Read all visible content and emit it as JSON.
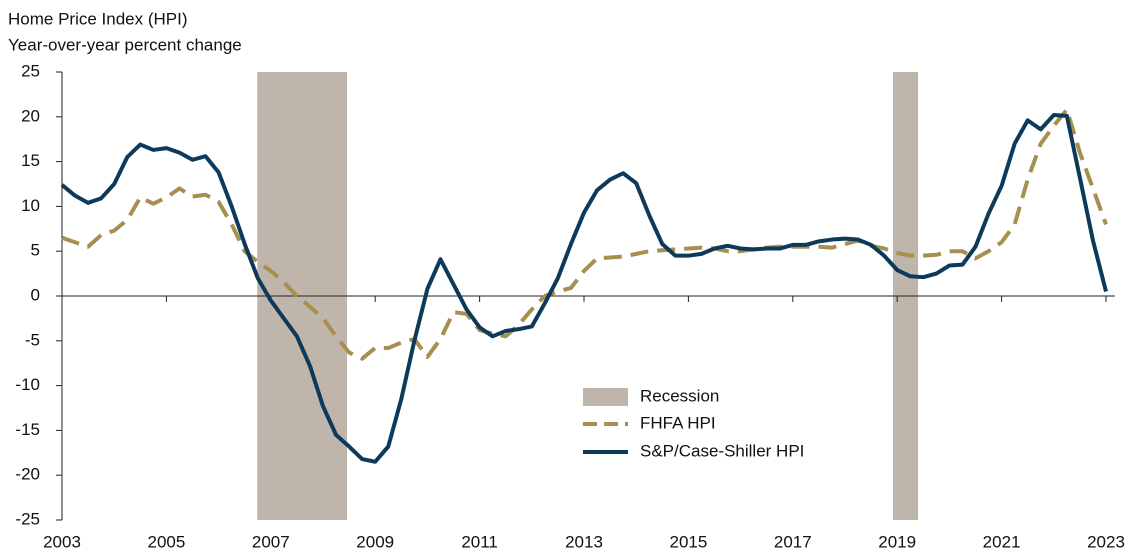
{
  "chart_data": {
    "type": "line",
    "title": "Home Price Index (HPI)",
    "subtitle": "Year-over-year percent change",
    "x": [
      2003,
      2003.25,
      2003.5,
      2003.75,
      2004,
      2004.25,
      2004.5,
      2004.75,
      2005,
      2005.25,
      2005.5,
      2005.75,
      2006,
      2006.25,
      2006.5,
      2006.75,
      2007,
      2007.25,
      2007.5,
      2007.75,
      2008,
      2008.25,
      2008.5,
      2008.75,
      2009,
      2009.25,
      2009.5,
      2009.75,
      2010,
      2010.25,
      2010.5,
      2010.75,
      2011,
      2011.25,
      2011.5,
      2011.75,
      2012,
      2012.25,
      2012.5,
      2012.75,
      2013,
      2013.25,
      2013.5,
      2013.75,
      2014,
      2014.25,
      2014.5,
      2014.75,
      2015,
      2015.25,
      2015.5,
      2015.75,
      2016,
      2016.25,
      2016.5,
      2016.75,
      2017,
      2017.25,
      2017.5,
      2017.75,
      2018,
      2018.25,
      2018.5,
      2018.75,
      2019,
      2019.25,
      2019.5,
      2019.75,
      2020,
      2020.25,
      2020.5,
      2020.75,
      2021,
      2021.25,
      2021.5,
      2021.75,
      2022,
      2022.25,
      2022.5,
      2022.75,
      2023
    ],
    "series": [
      {
        "name": "FHFA HPI",
        "color": "#a68f4f",
        "dashed": true,
        "values": [
          6.5,
          6.0,
          5.5,
          6.8,
          7.3,
          8.5,
          11.0,
          10.3,
          11.0,
          12.0,
          11.1,
          11.3,
          10.5,
          8.0,
          5.0,
          3.8,
          2.8,
          1.5,
          0,
          -1.2,
          -2.5,
          -4.5,
          -6.3,
          -7.0,
          -5.8,
          -5.8,
          -5.2,
          -4.8,
          -6.8,
          -4.8,
          -1.8,
          -2.0,
          -3.8,
          -4.2,
          -4.5,
          -3.2,
          -1.5,
          0.0,
          0.5,
          0.9,
          2.8,
          4.2,
          4.3,
          4.4,
          4.7,
          5.0,
          5.1,
          5.2,
          5.3,
          5.4,
          5.3,
          5.0,
          5.0,
          5.2,
          5.4,
          5.5,
          5.5,
          5.5,
          5.5,
          5.4,
          5.8,
          6.2,
          5.6,
          5.3,
          4.8,
          4.5,
          4.5,
          4.6,
          5.0,
          5.0,
          4.2,
          5.0,
          6.0,
          8.0,
          13.0,
          17.0,
          19.0,
          20.8,
          16.0,
          12.0,
          8.0
        ]
      },
      {
        "name": "S&P/Case-Shiller HPI",
        "color": "#0d3a5a",
        "dashed": false,
        "values": [
          12.4,
          11.2,
          10.4,
          10.9,
          12.5,
          15.5,
          16.9,
          16.3,
          16.5,
          16.0,
          15.2,
          15.6,
          13.8,
          10.0,
          5.8,
          2.0,
          -0.5,
          -2.5,
          -4.5,
          -7.8,
          -12.3,
          -15.5,
          -16.8,
          -18.2,
          -18.5,
          -16.8,
          -11.5,
          -5.0,
          0.8,
          4.1,
          1.3,
          -1.5,
          -3.5,
          -4.5,
          -3.9,
          -3.7,
          -3.4,
          -0.8,
          2.0,
          5.8,
          9.3,
          11.8,
          13.0,
          13.7,
          12.6,
          9.0,
          5.8,
          4.5,
          4.5,
          4.7,
          5.3,
          5.6,
          5.3,
          5.2,
          5.3,
          5.3,
          5.7,
          5.7,
          6.1,
          6.3,
          6.4,
          6.3,
          5.7,
          4.5,
          2.9,
          2.2,
          2.1,
          2.5,
          3.4,
          3.5,
          5.5,
          9.2,
          12.3,
          17.0,
          19.6,
          18.6,
          20.2,
          20.1,
          13.2,
          6.2,
          0.5
        ]
      }
    ],
    "recession_label": "Recession",
    "recession_color": "#bfb5ab",
    "recessions": [
      {
        "start": 2006.74,
        "end": 2008.46
      },
      {
        "start": 2018.92,
        "end": 2019.4
      }
    ],
    "xlim": [
      2003,
      2023
    ],
    "xticks": [
      2003,
      2005,
      2007,
      2009,
      2011,
      2013,
      2015,
      2017,
      2019,
      2021,
      2023
    ],
    "ylim": [
      -25,
      25
    ],
    "yticks": [
      -25,
      -20,
      -15,
      -10,
      -5,
      0,
      5,
      10,
      15,
      20,
      25
    ]
  }
}
